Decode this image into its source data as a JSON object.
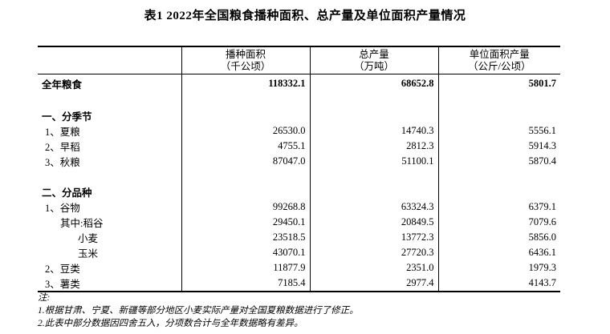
{
  "title": "表1  2022年全国粮食播种面积、总产量及单位面积产量情况",
  "table": {
    "columns": [
      {
        "name": "",
        "unit": ""
      },
      {
        "name": "播种面积",
        "unit": "（千公顷）"
      },
      {
        "name": "总产量",
        "unit": "（万吨）"
      },
      {
        "name": "单位面积产量",
        "unit": "（公斤/公顷）"
      }
    ],
    "rows": [
      {
        "label": "全年粮食",
        "v1": "118332.1",
        "v2": "68652.8",
        "v3": "5801.7"
      },
      {
        "label": "一、分季节",
        "v1": "",
        "v2": "",
        "v3": ""
      },
      {
        "label": "1、夏粮",
        "v1": "26530.0",
        "v2": "14740.3",
        "v3": "5556.1"
      },
      {
        "label": "2、早稻",
        "v1": "4755.1",
        "v2": "2812.3",
        "v3": "5914.3"
      },
      {
        "label": "3、秋粮",
        "v1": "87047.0",
        "v2": "51100.1",
        "v3": "5870.4"
      },
      {
        "label": "二、分品种",
        "v1": "",
        "v2": "",
        "v3": ""
      },
      {
        "label": "1、谷物",
        "v1": "99268.8",
        "v2": "63324.3",
        "v3": "6379.1"
      },
      {
        "label": "其中:稻谷",
        "v1": "29450.1",
        "v2": "20849.5",
        "v3": "7079.6"
      },
      {
        "label": "小麦",
        "v1": "23518.5",
        "v2": "13772.3",
        "v3": "5856.0"
      },
      {
        "label": "玉米",
        "v1": "43070.1",
        "v2": "27720.3",
        "v3": "6436.1"
      },
      {
        "label": "2、豆类",
        "v1": "11877.9",
        "v2": "2351.0",
        "v3": "1979.3"
      },
      {
        "label": "3、薯类",
        "v1": "7185.4",
        "v2": "2977.4",
        "v3": "4143.7"
      }
    ]
  },
  "notes": {
    "header": "注:",
    "items": [
      "1.根据甘肃、宁夏、新疆等部分地区小麦实际产量对全国夏粮数据进行了修正。",
      "2.此表中部分数据因四舍五入，分项数合计与全年数据略有差异。"
    ]
  }
}
